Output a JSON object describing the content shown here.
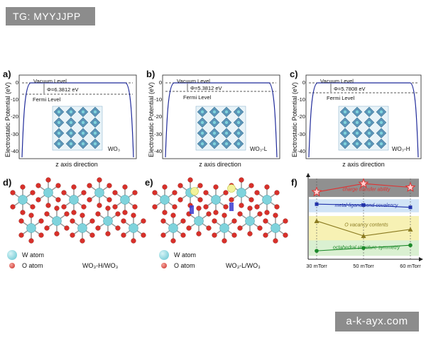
{
  "watermarks": {
    "top_left": "TG: MYYJJPP",
    "bottom_right": "a-k-ayx.com"
  },
  "panels": {
    "a": {
      "label": "a)",
      "ylabel": "Electrostatic Potential (eV)",
      "xlabel": "z axis direction",
      "vacuum": "Vacuum Level",
      "fermi": "Fermi Level",
      "phi": "Φ=6.3812 eV",
      "material": "WO₃",
      "yticks": [
        "0",
        "-10",
        "-20",
        "-30",
        "-40"
      ]
    },
    "b": {
      "label": "b)",
      "ylabel": "Electrostatic Potential (eV)",
      "xlabel": "z axis direction",
      "vacuum": "Vacuum Level",
      "fermi": "Fermi Level",
      "phi": "Φ=5.3812 eV",
      "material": "WO₃-L",
      "yticks": [
        "0",
        "-10",
        "-20",
        "-30",
        "-40"
      ]
    },
    "c": {
      "label": "c)",
      "ylabel": "Electrostatic Potential (eV)",
      "xlabel": "z axis direction",
      "vacuum": "Vacuum Level",
      "fermi": "Fermi Level",
      "phi": "Φ=5.7808 eV",
      "material": "WO₃-H",
      "yticks": [
        "0",
        "-10",
        "-20",
        "-30",
        "-40"
      ]
    },
    "d": {
      "label": "d)",
      "w_atom": "W atom",
      "o_atom": "O atom",
      "caption": "WO₃-H/WO₃"
    },
    "e": {
      "label": "e)",
      "w_atom": "W atom",
      "o_atom": "O atom",
      "caption": "WO₃-L/WO₃"
    },
    "f": {
      "label": "f)"
    }
  },
  "chart_data": {
    "type": "line",
    "categories": [
      "30 mTorr",
      "50 mTorr",
      "60 mTorr"
    ],
    "series": [
      {
        "name": "charge transfer ability",
        "values": [
          3.6,
          4.05,
          3.85
        ],
        "color": "#e03030",
        "band": "#8a8a8a",
        "marker": "star"
      },
      {
        "name": "metal-ligand bond covalency",
        "values": [
          2.95,
          2.9,
          2.78
        ],
        "color": "#2233aa",
        "band": "#cfe3f5",
        "marker": "square"
      },
      {
        "name": "O vacancy contents",
        "values": [
          2.05,
          1.25,
          1.6
        ],
        "color": "#8a7a20",
        "band": "#f7f0b0",
        "marker": "triangle"
      },
      {
        "name": "octahedral structure symmetry",
        "values": [
          0.45,
          0.6,
          0.75
        ],
        "color": "#1c8a2a",
        "band": "#d8efcf",
        "marker": "circle"
      }
    ]
  },
  "colors": {
    "curve": "#1f2a9a",
    "w_atom": "#7fd3dc",
    "o_atom": "#d8302a",
    "octahedron": "#4a8ab0"
  }
}
